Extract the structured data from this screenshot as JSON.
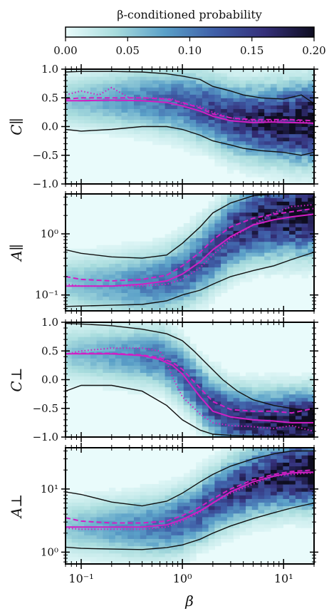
{
  "colorbar": {
    "label": "β-conditioned probability",
    "ticks": [
      "0.00",
      "0.05",
      "0.10",
      "0.15",
      "0.20"
    ],
    "range": [
      0,
      0.2
    ],
    "colors": [
      "#e9fbfb",
      "#a8dcdd",
      "#5aa0c8",
      "#3f5fa8",
      "#35307a",
      "#0e0d20"
    ]
  },
  "x_axis": {
    "label": "β",
    "scale": "log",
    "range": [
      0.07,
      20
    ],
    "tick_labels": [
      "10⁻¹",
      "10⁰",
      "10¹"
    ]
  },
  "line_color": "#d11fc4",
  "contour_color": "#111111",
  "chart_data": [
    {
      "type": "heatmap",
      "ylabel": "C∥",
      "yscale": "linear",
      "ylim": [
        -1,
        1
      ],
      "yticks": [
        "1.0",
        "0.5",
        "0.0",
        "−0.5",
        "−1.0"
      ],
      "ytick_values": [
        1,
        0.5,
        0,
        -0.5,
        -1
      ],
      "series": [
        {
          "name": "solid",
          "x": [
            0.07,
            0.1,
            0.2,
            0.4,
            0.7,
            1,
            1.5,
            2,
            3,
            5,
            8,
            12,
            20
          ],
          "y": [
            0.45,
            0.45,
            0.46,
            0.45,
            0.42,
            0.36,
            0.27,
            0.18,
            0.1,
            0.07,
            0.08,
            0.07,
            0.06
          ]
        },
        {
          "name": "dashed",
          "x": [
            0.07,
            0.1,
            0.2,
            0.4,
            0.7,
            1,
            1.5,
            2,
            3,
            5,
            8,
            12,
            20
          ],
          "y": [
            0.48,
            0.5,
            0.5,
            0.5,
            0.48,
            0.42,
            0.32,
            0.22,
            0.15,
            0.12,
            0.12,
            0.12,
            0.1
          ]
        },
        {
          "name": "dotted",
          "x": [
            0.07,
            0.1,
            0.15,
            0.2,
            0.3,
            0.5,
            0.8,
            1,
            1.5,
            2,
            3,
            5,
            8,
            12,
            20
          ],
          "y": [
            0.55,
            0.62,
            0.55,
            0.68,
            0.5,
            0.5,
            0.48,
            0.4,
            0.35,
            0.25,
            0.15,
            0.1,
            0.1,
            0.12,
            0.05
          ]
        }
      ],
      "contour_upper": {
        "x": [
          0.07,
          0.1,
          0.2,
          0.4,
          0.7,
          1,
          1.5,
          2,
          3,
          4,
          6,
          10,
          15,
          20
        ],
        "y": [
          0.95,
          0.96,
          0.96,
          0.95,
          0.92,
          0.88,
          0.82,
          0.7,
          0.62,
          0.55,
          0.5,
          0.48,
          0.55,
          0.4
        ]
      },
      "contour_lower": {
        "x": [
          0.07,
          0.1,
          0.2,
          0.4,
          0.7,
          1,
          1.5,
          2,
          3,
          4,
          6,
          10,
          15,
          20
        ],
        "y": [
          -0.05,
          -0.08,
          -0.05,
          0.0,
          0.0,
          -0.05,
          -0.15,
          -0.25,
          -0.32,
          -0.38,
          -0.42,
          -0.45,
          -0.5,
          -0.45
        ]
      },
      "density": {
        "peak_y": [
          0.45,
          0.46,
          0.47,
          0.46,
          0.42,
          0.3,
          0.15,
          0.08,
          0.07,
          0.07
        ],
        "peak_x": [
          0.07,
          0.15,
          0.3,
          0.6,
          1.0,
          1.8,
          3,
          5,
          10,
          20
        ],
        "width": 0.28,
        "grow": 0.6
      }
    },
    {
      "type": "heatmap",
      "ylabel": "A∥",
      "yscale": "log",
      "ylim": [
        0.055,
        4.5
      ],
      "yticks": [
        "10⁰",
        "10⁻¹"
      ],
      "ytick_values": [
        1,
        0.1
      ],
      "series": [
        {
          "name": "solid",
          "x": [
            0.07,
            0.1,
            0.2,
            0.4,
            0.7,
            1,
            1.5,
            2,
            3,
            5,
            8,
            12,
            20
          ],
          "y": [
            0.14,
            0.14,
            0.14,
            0.15,
            0.17,
            0.22,
            0.35,
            0.55,
            0.9,
            1.4,
            1.7,
            1.9,
            2.1
          ]
        },
        {
          "name": "dashed",
          "x": [
            0.07,
            0.1,
            0.2,
            0.4,
            0.7,
            1,
            1.5,
            2,
            3,
            5,
            8,
            12,
            20
          ],
          "y": [
            0.2,
            0.18,
            0.17,
            0.18,
            0.21,
            0.3,
            0.5,
            0.8,
            1.3,
            1.8,
            2.1,
            2.3,
            2.6
          ]
        },
        {
          "name": "dotted",
          "x": [
            0.07,
            0.1,
            0.2,
            0.4,
            0.7,
            1,
            1.5,
            2,
            3,
            5,
            8,
            12,
            20
          ],
          "y": [
            0.15,
            0.14,
            0.14,
            0.14,
            0.15,
            0.18,
            0.28,
            0.45,
            0.85,
            1.4,
            2.2,
            2.8,
            3.0
          ]
        }
      ],
      "contour_upper": {
        "x": [
          0.07,
          0.1,
          0.2,
          0.4,
          0.7,
          1,
          1.5,
          2,
          3,
          5,
          8,
          12,
          20
        ],
        "y": [
          0.55,
          0.48,
          0.42,
          0.4,
          0.45,
          0.7,
          1.3,
          2.2,
          3.2,
          4.2,
          4.5,
          4.5,
          4.5
        ]
      },
      "contour_lower": {
        "x": [
          0.07,
          0.1,
          0.2,
          0.4,
          0.7,
          1,
          1.5,
          2,
          3,
          5,
          8,
          12,
          20
        ],
        "y": [
          0.065,
          0.066,
          0.068,
          0.07,
          0.08,
          0.1,
          0.12,
          0.15,
          0.2,
          0.25,
          0.3,
          0.38,
          0.5
        ]
      },
      "density": {
        "peak_y": [
          0.16,
          0.15,
          0.15,
          0.16,
          0.22,
          0.45,
          1.0,
          1.6,
          2.0,
          2.3
        ],
        "peak_x": [
          0.07,
          0.15,
          0.3,
          0.6,
          1.0,
          1.8,
          3,
          5,
          10,
          20
        ],
        "width": 0.3,
        "grow": 0.5
      }
    },
    {
      "type": "heatmap",
      "ylabel": "C⊥",
      "yscale": "linear",
      "ylim": [
        -1,
        1
      ],
      "yticks": [
        "1.0",
        "0.5",
        "0.0",
        "−0.5",
        "−1.0"
      ],
      "ytick_values": [
        1,
        0.5,
        0,
        -0.5,
        -1
      ],
      "series": [
        {
          "name": "solid",
          "x": [
            0.07,
            0.1,
            0.2,
            0.4,
            0.6,
            0.8,
            1,
            1.5,
            2,
            3,
            5,
            8,
            12,
            20
          ],
          "y": [
            0.45,
            0.45,
            0.45,
            0.42,
            0.35,
            0.25,
            0.1,
            -0.3,
            -0.55,
            -0.65,
            -0.7,
            -0.72,
            -0.75,
            -0.75
          ]
        },
        {
          "name": "dashed",
          "x": [
            0.07,
            0.1,
            0.2,
            0.4,
            0.6,
            0.8,
            1,
            1.5,
            2,
            3,
            5,
            8,
            12,
            20
          ],
          "y": [
            0.45,
            0.46,
            0.46,
            0.43,
            0.38,
            0.3,
            0.18,
            -0.15,
            -0.38,
            -0.52,
            -0.55,
            -0.55,
            -0.58,
            -0.5
          ]
        },
        {
          "name": "dotted",
          "x": [
            0.07,
            0.1,
            0.2,
            0.4,
            0.6,
            0.7,
            0.8,
            1,
            1.5,
            2,
            3,
            5,
            8,
            12,
            20
          ],
          "y": [
            0.45,
            0.5,
            0.55,
            0.55,
            0.5,
            0.3,
            0.05,
            -0.3,
            -0.6,
            -0.75,
            -0.8,
            -0.82,
            -0.85,
            -0.8,
            -0.9
          ]
        }
      ],
      "contour_upper": {
        "x": [
          0.07,
          0.1,
          0.2,
          0.4,
          0.7,
          1,
          1.3,
          1.8,
          2.5,
          3.5,
          5,
          8,
          12,
          20
        ],
        "y": [
          0.98,
          0.97,
          0.94,
          0.88,
          0.8,
          0.68,
          0.5,
          0.25,
          0.0,
          -0.2,
          -0.35,
          -0.45,
          -0.5,
          -0.55
        ]
      },
      "contour_lower": {
        "x": [
          0.07,
          0.1,
          0.2,
          0.4,
          0.7,
          1,
          1.5,
          2,
          3,
          5,
          8,
          12,
          20
        ],
        "y": [
          -0.2,
          -0.1,
          -0.1,
          -0.2,
          -0.45,
          -0.7,
          -0.88,
          -0.95,
          -0.97,
          -0.98,
          -0.98,
          -0.98,
          -0.98
        ]
      },
      "density": {
        "peak_y": [
          0.45,
          0.45,
          0.44,
          0.4,
          0.12,
          -0.4,
          -0.65,
          -0.72,
          -0.75,
          -0.75
        ],
        "peak_x": [
          0.07,
          0.15,
          0.3,
          0.6,
          1.0,
          1.8,
          3,
          5,
          10,
          20
        ],
        "width": 0.3,
        "grow": 0.2
      }
    },
    {
      "type": "heatmap",
      "ylabel": "A⊥",
      "yscale": "log",
      "ylim": [
        0.65,
        45
      ],
      "yticks": [
        "10¹",
        "10⁰"
      ],
      "ytick_values": [
        10,
        1
      ],
      "series": [
        {
          "name": "solid",
          "x": [
            0.07,
            0.1,
            0.2,
            0.4,
            0.7,
            1,
            1.5,
            2,
            3,
            5,
            8,
            12,
            20
          ],
          "y": [
            2.5,
            2.5,
            2.5,
            2.5,
            2.7,
            3.3,
            4.5,
            6,
            9,
            13,
            16,
            18,
            18.5
          ]
        },
        {
          "name": "dashed",
          "x": [
            0.07,
            0.1,
            0.2,
            0.4,
            0.7,
            1,
            1.5,
            2,
            3,
            5,
            8,
            12,
            20
          ],
          "y": [
            3.5,
            3.1,
            2.9,
            2.9,
            3.1,
            3.8,
            5.2,
            7,
            10,
            14,
            17,
            19,
            20
          ]
        },
        {
          "name": "dotted",
          "x": [
            0.07,
            0.1,
            0.2,
            0.4,
            0.7,
            1,
            1.5,
            2,
            3,
            5,
            8,
            12,
            20
          ],
          "y": [
            2.4,
            2.3,
            2.3,
            2.3,
            2.5,
            3.1,
            4.3,
            6,
            8.5,
            12,
            16,
            17,
            18
          ]
        }
      ],
      "contour_upper": {
        "x": [
          0.07,
          0.1,
          0.2,
          0.4,
          0.7,
          1,
          1.5,
          2,
          3,
          5,
          8,
          12,
          20
        ],
        "y": [
          9,
          8.2,
          6.2,
          5.4,
          6.4,
          8.6,
          13,
          17,
          23,
          30,
          36,
          40,
          40
        ]
      },
      "contour_lower": {
        "x": [
          0.07,
          0.1,
          0.2,
          0.4,
          0.7,
          1,
          1.5,
          2,
          3,
          5,
          8,
          12,
          20
        ],
        "y": [
          1.2,
          1.15,
          1.12,
          1.1,
          1.18,
          1.3,
          1.6,
          2.0,
          2.6,
          3.4,
          4.2,
          5.0,
          6.0
        ]
      },
      "density": {
        "peak_y": [
          2.5,
          2.5,
          2.5,
          2.6,
          3.2,
          5.5,
          9,
          13,
          17,
          18.5
        ],
        "peak_x": [
          0.07,
          0.15,
          0.3,
          0.6,
          1.0,
          1.8,
          3,
          5,
          10,
          20
        ],
        "width": 0.3,
        "grow": 0.3
      }
    }
  ]
}
